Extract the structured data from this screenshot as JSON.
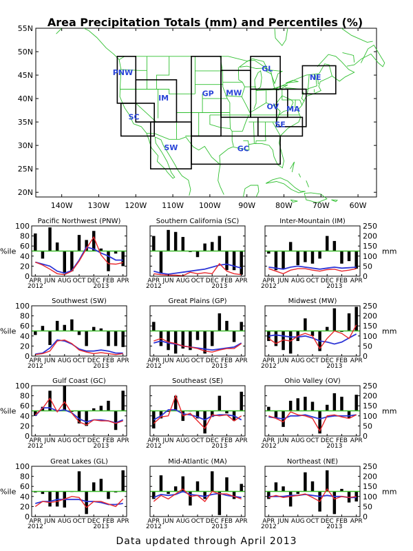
{
  "title": "Area Precipitation Totals (mm) and Percentiles (%)",
  "footer": "Data updated through April 2013",
  "colors": {
    "bars": "#000000",
    "percentile_line": "#e8262b",
    "mm_line": "#2d35d6",
    "median_line": "#3cbc2a",
    "map_lines": "#2fbf2f",
    "region_boxes": "#000000",
    "region_labels": "#2a45d8"
  },
  "map": {
    "lon_ticks": [
      "140W",
      "130W",
      "120W",
      "110W",
      "100W",
      "90W",
      "80W",
      "70W",
      "60W"
    ],
    "lat_ticks": [
      "55N",
      "50N",
      "45N",
      "40N",
      "35N",
      "30N",
      "25N",
      "20N"
    ],
    "regions": [
      "PNW",
      "SC",
      "IM",
      "SW",
      "GP",
      "MW",
      "GL",
      "OV",
      "SE",
      "GC",
      "MA",
      "NE"
    ]
  },
  "axis_labels": {
    "left": "%ile",
    "right": "mm"
  },
  "left_ticks": [
    "100",
    "80",
    "60",
    "40",
    "20",
    "0"
  ],
  "right_ticks": [
    "250",
    "200",
    "150",
    "100",
    "50",
    "0"
  ],
  "month_ticks": [
    "APR",
    "JUN",
    "AUG",
    "OCT",
    "DEC",
    "FEB",
    "APR"
  ],
  "year_labels": [
    "2012",
    "2013"
  ],
  "chart_data": [
    {
      "type": "bar",
      "title": "Pacific Northwest (PNW)",
      "percentile_bars": [
        85,
        35,
        97,
        67,
        5,
        10,
        82,
        72,
        90,
        55,
        10,
        45,
        20
      ],
      "percentile_line": [
        28,
        22,
        14,
        5,
        3,
        10,
        30,
        55,
        78,
        42,
        25,
        24,
        27
      ],
      "mm_line": [
        70,
        60,
        50,
        25,
        15,
        28,
        80,
        145,
        135,
        115,
        100,
        80,
        80
      ],
      "ylim": [
        0,
        100
      ],
      "y2lim": [
        0,
        250
      ]
    },
    {
      "type": "bar",
      "title": "Southern California (SC)",
      "percentile_bars": [
        80,
        5,
        92,
        88,
        78,
        48,
        38,
        65,
        68,
        80,
        12,
        12,
        3
      ],
      "percentile_line": [
        5,
        3,
        2,
        2,
        1,
        8,
        5,
        7,
        5,
        25,
        10,
        5,
        3
      ],
      "mm_line": [
        25,
        15,
        10,
        15,
        20,
        25,
        30,
        35,
        45,
        55,
        60,
        50,
        40
      ],
      "ylim": [
        0,
        100
      ],
      "y2lim": [
        0,
        250
      ]
    },
    {
      "type": "bar",
      "title": "Inter-Mountain (IM)",
      "percentile_bars": [
        45,
        12,
        15,
        68,
        22,
        28,
        25,
        35,
        80,
        70,
        25,
        30,
        15
      ],
      "percentile_line": [
        15,
        10,
        5,
        12,
        15,
        15,
        12,
        10,
        13,
        14,
        10,
        12,
        15
      ],
      "mm_line": [
        45,
        40,
        35,
        45,
        50,
        45,
        40,
        35,
        40,
        45,
        40,
        42,
        45
      ],
      "ylim": [
        0,
        100
      ],
      "y2lim": [
        0,
        250
      ]
    },
    {
      "type": "bar",
      "title": "Southwest (SW)",
      "percentile_bars": [
        42,
        60,
        22,
        70,
        62,
        73,
        42,
        20,
        58,
        55,
        20,
        20,
        18
      ],
      "percentile_line": [
        3,
        5,
        10,
        30,
        32,
        25,
        12,
        8,
        5,
        7,
        5,
        3,
        5
      ],
      "mm_line": [
        10,
        15,
        40,
        80,
        75,
        60,
        35,
        25,
        25,
        30,
        25,
        15,
        15
      ],
      "ylim": [
        0,
        100
      ],
      "y2lim": [
        0,
        250
      ]
    },
    {
      "type": "bar",
      "title": "Great Plains (GP)",
      "percentile_bars": [
        68,
        20,
        12,
        5,
        15,
        12,
        32,
        5,
        20,
        85,
        70,
        28,
        68
      ],
      "percentile_line": [
        30,
        35,
        28,
        25,
        20,
        18,
        15,
        10,
        8,
        12,
        15,
        15,
        25
      ],
      "mm_line": [
        65,
        75,
        65,
        60,
        50,
        45,
        40,
        35,
        30,
        35,
        40,
        45,
        65
      ],
      "ylim": [
        0,
        100
      ],
      "y2lim": [
        0,
        250
      ]
    },
    {
      "type": "bar",
      "title": "Midwest (MW)",
      "percentile_bars": [
        30,
        20,
        12,
        5,
        30,
        75,
        40,
        10,
        58,
        95,
        48,
        85,
        98
      ],
      "percentile_line": [
        35,
        25,
        32,
        30,
        40,
        45,
        40,
        15,
        35,
        50,
        45,
        35,
        62
      ],
      "mm_line": [
        100,
        105,
        100,
        95,
        95,
        100,
        90,
        75,
        70,
        60,
        70,
        90,
        110
      ],
      "ylim": [
        0,
        100
      ],
      "y2lim": [
        0,
        250
      ]
    },
    {
      "type": "bar",
      "title": "Gulf Coast (GC)",
      "percentile_bars": [
        40,
        58,
        90,
        50,
        100,
        48,
        25,
        20,
        55,
        60,
        70,
        12,
        90
      ],
      "percentile_line": [
        42,
        55,
        75,
        48,
        68,
        45,
        28,
        22,
        32,
        30,
        30,
        25,
        30
      ],
      "mm_line": [
        100,
        140,
        140,
        125,
        130,
        115,
        85,
        70,
        80,
        80,
        75,
        65,
        80
      ],
      "ylim": [
        0,
        100
      ],
      "y2lim": [
        0,
        250
      ]
    },
    {
      "type": "bar",
      "title": "Southeast (SE)",
      "percentile_bars": [
        15,
        35,
        48,
        80,
        30,
        50,
        35,
        5,
        38,
        80,
        45,
        30,
        88
      ],
      "percentile_line": [
        25,
        38,
        40,
        80,
        40,
        45,
        30,
        15,
        42,
        40,
        42,
        30,
        40
      ],
      "mm_line": [
        80,
        100,
        130,
        130,
        110,
        105,
        95,
        80,
        100,
        105,
        105,
        100,
        80
      ],
      "ylim": [
        0,
        100
      ],
      "y2lim": [
        0,
        250
      ]
    },
    {
      "type": "bar",
      "title": "Ohio Valley (OV)",
      "percentile_bars": [
        58,
        35,
        18,
        70,
        75,
        78,
        68,
        5,
        62,
        85,
        78,
        35,
        82
      ],
      "percentile_line": [
        40,
        35,
        28,
        48,
        42,
        40,
        35,
        10,
        40,
        42,
        38,
        35,
        42
      ],
      "mm_line": [
        95,
        90,
        85,
        100,
        100,
        105,
        95,
        85,
        95,
        100,
        100,
        100,
        105
      ],
      "ylim": [
        0,
        100
      ],
      "y2lim": [
        0,
        250
      ]
    },
    {
      "type": "bar",
      "title": "Great Lakes (GL)",
      "percentile_bars": [
        48,
        45,
        20,
        20,
        18,
        50,
        90,
        5,
        68,
        75,
        35,
        48,
        92
      ],
      "percentile_line": [
        20,
        30,
        28,
        30,
        35,
        40,
        38,
        18,
        30,
        30,
        25,
        20,
        35
      ],
      "mm_line": [
        65,
        75,
        75,
        85,
        85,
        85,
        85,
        75,
        75,
        70,
        60,
        60,
        65
      ],
      "ylim": [
        0,
        100
      ],
      "y2lim": [
        0,
        250
      ]
    },
    {
      "type": "bar",
      "title": "Mid-Atlantic (MA)",
      "percentile_bars": [
        35,
        82,
        45,
        60,
        80,
        22,
        70,
        35,
        90,
        3,
        78,
        35,
        65
      ],
      "percentile_line": [
        30,
        42,
        35,
        45,
        55,
        40,
        42,
        30,
        50,
        45,
        45,
        40,
        35
      ],
      "mm_line": [
        95,
        110,
        105,
        110,
        125,
        110,
        105,
        100,
        110,
        115,
        105,
        100,
        95
      ],
      "ylim": [
        0,
        100
      ],
      "y2lim": [
        0,
        250
      ]
    },
    {
      "type": "bar",
      "title": "Northeast (NE)",
      "percentile_bars": [
        35,
        68,
        60,
        20,
        45,
        88,
        70,
        10,
        92,
        5,
        55,
        28,
        30
      ],
      "percentile_line": [
        38,
        42,
        38,
        40,
        42,
        45,
        38,
        30,
        55,
        35,
        40,
        38,
        40
      ],
      "mm_line": [
        100,
        100,
        100,
        105,
        105,
        110,
        105,
        100,
        105,
        100,
        100,
        95,
        95
      ],
      "ylim": [
        0,
        100
      ],
      "y2lim": [
        0,
        250
      ]
    }
  ]
}
